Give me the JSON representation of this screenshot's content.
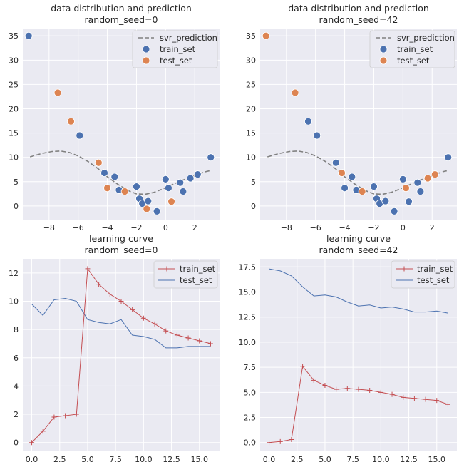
{
  "chart_data": [
    {
      "type": "scatter",
      "title_line1": "data distribution and prediction",
      "title_line2": "random_seed=0",
      "xlim": [
        -9.8,
        3.7
      ],
      "ylim": [
        -2.8,
        36.5
      ],
      "xticks": [
        -8,
        -6,
        -4,
        -2,
        0,
        2
      ],
      "xtick_labels": [
        "−8",
        "−6",
        "−4",
        "−2",
        "0",
        "2"
      ],
      "yticks": [
        0,
        5,
        10,
        15,
        20,
        25,
        30,
        35
      ],
      "ytick_labels": [
        "0",
        "5",
        "10",
        "15",
        "20",
        "25",
        "30",
        "35"
      ],
      "legend": [
        "svr_prediction",
        "train_set",
        "test_set"
      ],
      "colors": {
        "train": "#4c72b0",
        "test": "#dd8452",
        "line": "#808080"
      },
      "prediction": {
        "x": [
          -9.3,
          -8.5,
          -7.8,
          -7.2,
          -6.6,
          -6.0,
          -5.3,
          -4.6,
          -4.0,
          -3.3,
          -2.6,
          -2.0,
          -1.4,
          -0.8,
          -0.2,
          0.4,
          1.0,
          1.6,
          2.2,
          2.8,
          3.1
        ],
        "y": [
          10.1,
          10.8,
          11.2,
          11.3,
          11.0,
          10.3,
          9.1,
          7.6,
          6.0,
          4.5,
          3.2,
          2.5,
          2.4,
          2.8,
          3.5,
          4.3,
          5.1,
          5.8,
          6.5,
          7.1,
          7.3
        ]
      },
      "train": {
        "x": [
          -9.4,
          -5.9,
          -4.2,
          -3.5,
          -3.2,
          -2.0,
          -1.8,
          -1.6,
          -1.2,
          -0.6,
          0.0,
          0.2,
          1.0,
          1.2,
          1.7,
          2.2,
          3.1
        ],
        "y": [
          35.0,
          14.5,
          6.8,
          6.0,
          3.3,
          4.0,
          1.5,
          0.5,
          1.0,
          -1.1,
          5.5,
          3.7,
          4.8,
          3.0,
          5.7,
          6.5,
          10.0
        ]
      },
      "test": {
        "x": [
          -7.4,
          -6.5,
          -4.6,
          -4.0,
          -2.8,
          -1.3,
          0.4
        ],
        "y": [
          23.3,
          17.4,
          8.9,
          3.7,
          3.0,
          -0.6,
          0.9
        ]
      }
    },
    {
      "type": "scatter",
      "title_line1": "data distribution and prediction",
      "title_line2": "random_seed=42",
      "xlim": [
        -9.8,
        3.7
      ],
      "ylim": [
        -2.8,
        36.5
      ],
      "xticks": [
        -8,
        -6,
        -4,
        -2,
        0,
        2
      ],
      "xtick_labels": [
        "−8",
        "−6",
        "−4",
        "−2",
        "0",
        "2"
      ],
      "yticks": [
        0,
        5,
        10,
        15,
        20,
        25,
        30,
        35
      ],
      "ytick_labels": [
        "0",
        "5",
        "10",
        "15",
        "20",
        "25",
        "30",
        "35"
      ],
      "legend": [
        "svr_prediction",
        "train_set",
        "test_set"
      ],
      "colors": {
        "train": "#4c72b0",
        "test": "#dd8452",
        "line": "#808080"
      },
      "prediction": {
        "x": [
          -9.3,
          -8.5,
          -7.8,
          -7.2,
          -6.6,
          -6.0,
          -5.3,
          -4.6,
          -4.0,
          -3.3,
          -2.6,
          -2.0,
          -1.4,
          -0.8,
          -0.2,
          0.4,
          1.0,
          1.6,
          2.2,
          2.8,
          3.1
        ],
        "y": [
          10.1,
          10.8,
          11.2,
          11.3,
          11.0,
          10.3,
          9.1,
          7.6,
          6.0,
          4.5,
          3.2,
          2.5,
          2.4,
          2.8,
          3.5,
          4.3,
          5.1,
          5.8,
          6.5,
          7.1,
          7.3
        ]
      },
      "train": {
        "x": [
          -6.5,
          -5.9,
          -4.6,
          -4.0,
          -3.5,
          -3.2,
          -2.0,
          -1.8,
          -1.6,
          -1.2,
          -0.6,
          0.0,
          0.4,
          1.0,
          1.2,
          3.1
        ],
        "y": [
          17.4,
          14.5,
          8.9,
          3.7,
          6.0,
          3.3,
          4.0,
          1.5,
          0.5,
          1.0,
          -1.1,
          5.5,
          0.9,
          4.8,
          3.0,
          10.0
        ]
      },
      "test": {
        "x": [
          -9.4,
          -7.4,
          -4.2,
          -2.8,
          0.2,
          1.7,
          2.2
        ],
        "y": [
          35.0,
          23.3,
          6.8,
          3.0,
          3.7,
          5.7,
          6.5
        ]
      }
    },
    {
      "type": "line",
      "title_line1": "learning curve",
      "title_line2": "random_seed=0",
      "xlim": [
        -0.8,
        16.8
      ],
      "ylim": [
        -0.62,
        13.0
      ],
      "xticks": [
        0,
        2.5,
        5,
        7.5,
        10,
        12.5,
        15
      ],
      "xtick_labels": [
        "0.0",
        "2.5",
        "5.0",
        "7.5",
        "10.0",
        "12.5",
        "15.0"
      ],
      "yticks": [
        0,
        2,
        4,
        6,
        8,
        10,
        12
      ],
      "ytick_labels": [
        "0",
        "2",
        "4",
        "6",
        "8",
        "10",
        "12"
      ],
      "legend": [
        "train_set",
        "test_set"
      ],
      "colors": {
        "train": "#c44e52",
        "test": "#4c72b0"
      },
      "x": [
        0,
        1,
        2,
        3,
        4,
        5,
        6,
        7,
        8,
        9,
        10,
        11,
        12,
        13,
        14,
        15,
        16
      ],
      "series": [
        {
          "name": "train_set",
          "values": [
            0.0,
            0.8,
            1.8,
            1.9,
            2.0,
            12.3,
            11.2,
            10.5,
            10.0,
            9.4,
            8.8,
            8.4,
            7.9,
            7.6,
            7.4,
            7.2,
            7.0
          ]
        },
        {
          "name": "test_set",
          "values": [
            9.8,
            9.0,
            10.1,
            10.2,
            10.0,
            8.7,
            8.5,
            8.4,
            8.7,
            7.6,
            7.5,
            7.3,
            6.7,
            6.7,
            6.8,
            6.8,
            6.8
          ]
        }
      ]
    },
    {
      "type": "line",
      "title_line1": "learning curve",
      "title_line2": "random_seed=42",
      "xlim": [
        -0.8,
        16.8
      ],
      "ylim": [
        -0.87,
        18.3
      ],
      "xticks": [
        0,
        2.5,
        5,
        7.5,
        10,
        12.5,
        15
      ],
      "xtick_labels": [
        "0.0",
        "2.5",
        "5.0",
        "7.5",
        "10.0",
        "12.5",
        "15.0"
      ],
      "yticks": [
        0,
        2.5,
        5,
        7.5,
        10,
        12.5,
        15,
        17.5
      ],
      "ytick_labels": [
        "0.0",
        "2.5",
        "5.0",
        "7.5",
        "10.0",
        "12.5",
        "15.0",
        "17.5"
      ],
      "legend": [
        "train_set",
        "test_set"
      ],
      "colors": {
        "train": "#c44e52",
        "test": "#4c72b0"
      },
      "x": [
        0,
        1,
        2,
        3,
        4,
        5,
        6,
        7,
        8,
        9,
        10,
        11,
        12,
        13,
        14,
        15,
        16
      ],
      "series": [
        {
          "name": "train_set",
          "values": [
            0.0,
            0.1,
            0.3,
            7.6,
            6.2,
            5.7,
            5.3,
            5.4,
            5.3,
            5.2,
            5.0,
            4.8,
            4.5,
            4.4,
            4.3,
            4.2,
            3.8
          ]
        },
        {
          "name": "test_set",
          "values": [
            17.3,
            17.1,
            16.6,
            15.5,
            14.6,
            14.7,
            14.5,
            14.0,
            13.6,
            13.7,
            13.4,
            13.5,
            13.3,
            13.0,
            13.0,
            13.1,
            12.9
          ]
        }
      ]
    }
  ]
}
